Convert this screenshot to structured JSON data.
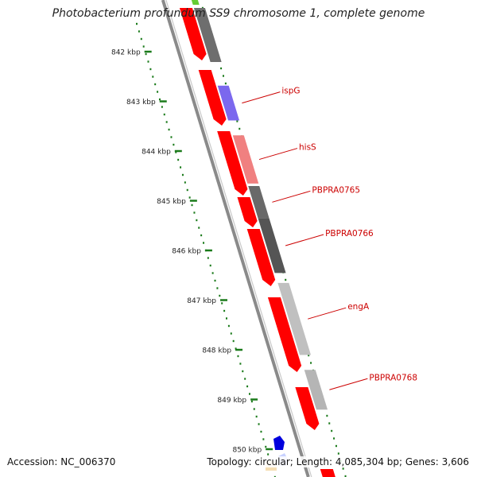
{
  "title": "Photobacterium profundum SS9 chromosome 1, complete genome",
  "footer": {
    "accession": "Accession: NC_006370",
    "stats": "Topology: circular; Length: 4,085,304 bp; Genes: 3,606"
  },
  "colors": {
    "forward_strand": "#ff0000",
    "backbone": "#8a8a8a",
    "tick": "#1a7a1a",
    "label": "#cc0000"
  },
  "ruler": [
    {
      "label": "842 kbp",
      "kbp": 842
    },
    {
      "label": "843 kbp",
      "kbp": 843
    },
    {
      "label": "844 kbp",
      "kbp": 844
    },
    {
      "label": "845 kbp",
      "kbp": 845
    },
    {
      "label": "846 kbp",
      "kbp": 846
    },
    {
      "label": "847 kbp",
      "kbp": 847
    },
    {
      "label": "848 kbp",
      "kbp": 848
    },
    {
      "label": "849 kbp",
      "kbp": 849
    },
    {
      "label": "850 kbp",
      "kbp": 850
    }
  ],
  "genes": [
    {
      "name": "ispG",
      "color": "#7b68ee",
      "start_kbp": 842.78,
      "end_kbp": 843.48
    },
    {
      "name": "hisS",
      "color": "#f08080",
      "start_kbp": 843.78,
      "end_kbp": 844.75
    },
    {
      "name": "PBPRA0765",
      "color": "#696969",
      "start_kbp": 844.8,
      "end_kbp": 845.45
    },
    {
      "name": "PBPRA0766",
      "color": "#555555",
      "start_kbp": 845.45,
      "end_kbp": 846.55
    },
    {
      "name": "engA",
      "color": "#c0c0c0",
      "start_kbp": 846.75,
      "end_kbp": 848.2
    },
    {
      "name": "PBPRA0768",
      "color": "#b5b5b5",
      "start_kbp": 848.5,
      "end_kbp": 849.3
    }
  ]
}
